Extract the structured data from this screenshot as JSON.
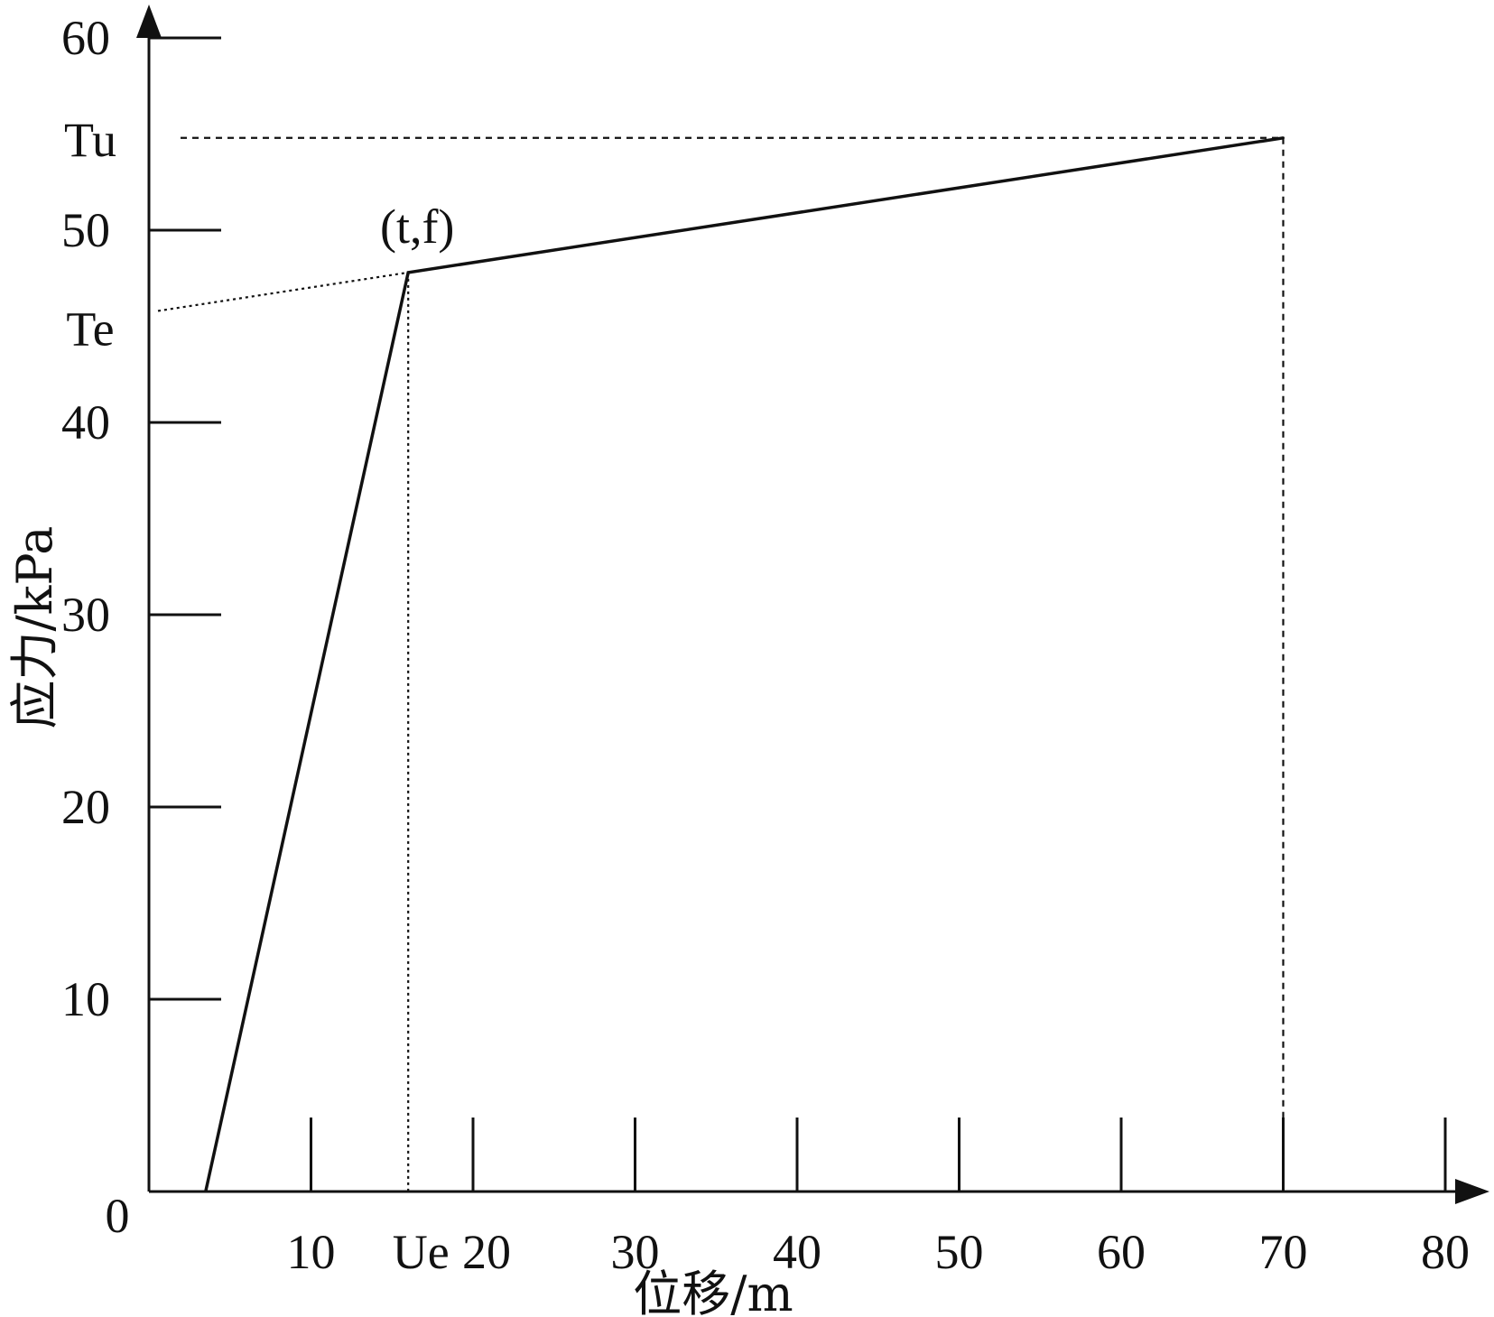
{
  "chart_data": {
    "type": "line",
    "title": "",
    "xlabel": "位移/m",
    "ylabel": "应力/kPa",
    "xlim": [
      0,
      80
    ],
    "ylim": [
      0,
      60
    ],
    "origin_label": "0",
    "x_ticks": [
      10,
      20,
      30,
      40,
      50,
      60,
      70,
      80
    ],
    "y_ticks": [
      10,
      20,
      30,
      40,
      50,
      60
    ],
    "grid": false,
    "legend": "none",
    "series": [
      {
        "x": [
          3.5,
          16,
          70
        ],
        "y": [
          0,
          47.8,
          54.8
        ]
      }
    ],
    "annotations": {
      "point_label": "(t,f)",
      "point": [
        16,
        47.8
      ],
      "ue_label": "Ue",
      "ue_x": 16,
      "tu_label": "Tu",
      "tu_y": 54.8,
      "te_label": "Te",
      "te_y": 45.8
    },
    "colors": {
      "line": "#111111",
      "axis": "#111111"
    }
  }
}
